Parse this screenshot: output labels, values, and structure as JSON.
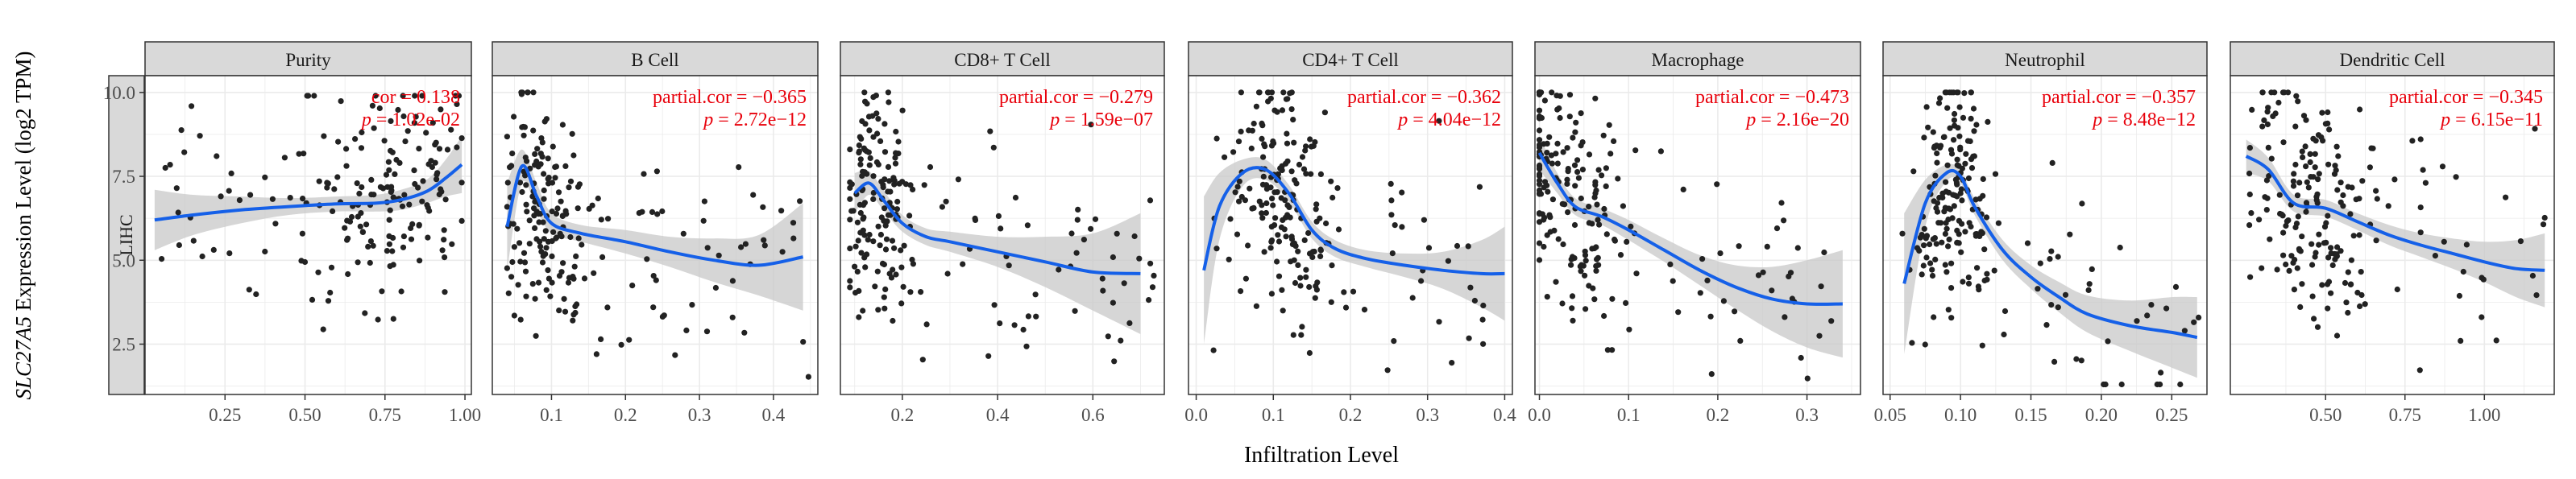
{
  "figure": {
    "ylabel_gene": "SLC27A5",
    "ylabel_rest": " Expression Level (log2 TPM)",
    "xlabel": "Infiltration Level",
    "row_label": "LIHC"
  },
  "colors": {
    "points": "#222222",
    "fit": "#1560e8",
    "band": "#c8c8c8",
    "strip": "#d9d9d9",
    "grid": "#ebebeb",
    "stats": "#e8000b"
  },
  "chart_data": [
    {
      "type": "scatter",
      "title": "Purity",
      "stat_label": "cor",
      "stat_value": "0.138",
      "p_label": "p",
      "p_value": "1.02e-02",
      "xlim": [
        0,
        1.02
      ],
      "ylim": [
        1.0,
        10.5
      ],
      "xticks": [
        0.25,
        0.5,
        0.75,
        1.0
      ],
      "xtick_labels": [
        "0.25",
        "0.50",
        "0.75",
        "1.00"
      ],
      "yticks": [
        2.5,
        5.0,
        7.5,
        10.0
      ],
      "ytick_labels": [
        "2.5",
        "5.0",
        "7.5",
        "10.0"
      ],
      "grid": true,
      "fit": {
        "x": [
          0.03,
          0.15,
          0.3,
          0.45,
          0.6,
          0.72,
          0.8,
          0.88,
          0.94,
          0.99
        ],
        "y": [
          6.2,
          6.35,
          6.5,
          6.6,
          6.68,
          6.7,
          6.8,
          7.05,
          7.45,
          7.85
        ],
        "lo": [
          5.3,
          5.75,
          6.1,
          6.35,
          6.45,
          6.45,
          6.5,
          6.7,
          6.9,
          7.0
        ],
        "hi": [
          7.1,
          6.95,
          6.9,
          6.85,
          6.9,
          6.95,
          7.1,
          7.4,
          8.0,
          8.7
        ]
      },
      "cloud": {
        "n": 190,
        "x_center": 0.76,
        "x_spread": 0.15,
        "x_min": 0.05,
        "x_max": 0.99,
        "y_min": 1.3,
        "y_max": 9.9,
        "seed": 11
      }
    },
    {
      "type": "scatter",
      "title": "B Cell",
      "stat_label": "partial.cor",
      "stat_value": "−0.365",
      "p_label": "p",
      "p_value": "2.72e−12",
      "xlim": [
        0.02,
        0.46
      ],
      "ylim": [
        1.0,
        10.5
      ],
      "xticks": [
        0.1,
        0.2,
        0.3,
        0.4
      ],
      "xtick_labels": [
        "0.1",
        "0.2",
        "0.3",
        "0.4"
      ],
      "yticks": [
        2.5,
        5.0,
        7.5,
        10.0
      ],
      "grid": true,
      "fit": {
        "x": [
          0.04,
          0.06,
          0.08,
          0.1,
          0.14,
          0.2,
          0.26,
          0.32,
          0.38,
          0.44
        ],
        "y": [
          6.0,
          7.8,
          6.9,
          6.1,
          5.8,
          5.55,
          5.25,
          5.0,
          4.85,
          5.1
        ],
        "lo": [
          4.7,
          7.3,
          6.5,
          5.8,
          5.55,
          5.2,
          4.8,
          4.35,
          3.95,
          3.5
        ],
        "hi": [
          7.3,
          8.3,
          7.3,
          6.4,
          6.05,
          5.9,
          5.7,
          5.65,
          5.75,
          6.7
        ]
      },
      "cloud": {
        "n": 210,
        "x_center": 0.085,
        "x_spread": 0.035,
        "x_min": 0.04,
        "x_max": 0.45,
        "y_min": 1.3,
        "y_max": 10.0,
        "seed": 23
      }
    },
    {
      "type": "scatter",
      "title": "CD8+ T Cell",
      "stat_label": "partial.cor",
      "stat_value": "−0.279",
      "p_label": "p",
      "p_value": "1.59e−07",
      "xlim": [
        0.07,
        0.75
      ],
      "ylim": [
        1.0,
        10.5
      ],
      "xticks": [
        0.2,
        0.4,
        0.6
      ],
      "xtick_labels": [
        "0.2",
        "0.4",
        "0.6"
      ],
      "yticks": [
        2.5,
        5.0,
        7.5,
        10.0
      ],
      "grid": true,
      "fit": {
        "x": [
          0.1,
          0.13,
          0.16,
          0.2,
          0.25,
          0.3,
          0.4,
          0.5,
          0.6,
          0.7
        ],
        "y": [
          7.0,
          7.3,
          6.8,
          6.1,
          5.7,
          5.55,
          5.25,
          4.95,
          4.65,
          4.6
        ],
        "lo": [
          6.4,
          6.95,
          6.5,
          5.85,
          5.45,
          5.25,
          4.8,
          4.2,
          3.5,
          2.8
        ],
        "hi": [
          7.6,
          7.65,
          7.1,
          6.35,
          5.95,
          5.85,
          5.7,
          5.7,
          5.8,
          6.4
        ]
      },
      "cloud": {
        "n": 210,
        "x_center": 0.15,
        "x_spread": 0.045,
        "x_min": 0.09,
        "x_max": 0.73,
        "y_min": 1.3,
        "y_max": 10.0,
        "seed": 37
      }
    },
    {
      "type": "scatter",
      "title": "CD4+ T Cell",
      "stat_label": "partial.cor",
      "stat_value": "−0.362",
      "p_label": "p",
      "p_value": "4.04e−12",
      "xlim": [
        -0.01,
        0.41
      ],
      "ylim": [
        1.0,
        10.5
      ],
      "xticks": [
        0.0,
        0.1,
        0.2,
        0.3,
        0.4
      ],
      "xtick_labels": [
        "0.0",
        "0.1",
        "0.2",
        "0.3",
        "0.4"
      ],
      "yticks": [
        2.5,
        5.0,
        7.5,
        10.0
      ],
      "grid": true,
      "fit": {
        "x": [
          0.01,
          0.03,
          0.06,
          0.09,
          0.12,
          0.15,
          0.18,
          0.22,
          0.27,
          0.32,
          0.37,
          0.4
        ],
        "y": [
          4.7,
          6.6,
          7.6,
          7.7,
          7.0,
          5.9,
          5.35,
          5.05,
          4.85,
          4.7,
          4.6,
          4.6
        ],
        "lo": [
          2.5,
          5.6,
          7.2,
          7.4,
          6.75,
          5.65,
          5.1,
          4.8,
          4.5,
          4.15,
          3.6,
          3.2
        ],
        "hi": [
          6.9,
          7.6,
          8.0,
          8.0,
          7.25,
          6.15,
          5.6,
          5.3,
          5.2,
          5.25,
          5.6,
          6.0
        ]
      },
      "cloud": {
        "n": 210,
        "x_center": 0.11,
        "x_spread": 0.035,
        "x_min": 0.02,
        "x_max": 0.39,
        "y_min": 1.3,
        "y_max": 10.0,
        "seed": 41
      }
    },
    {
      "type": "scatter",
      "title": "Macrophage",
      "stat_label": "partial.cor",
      "stat_value": "−0.473",
      "p_label": "p",
      "p_value": "2.16e−20",
      "xlim": [
        -0.005,
        0.36
      ],
      "ylim": [
        1.0,
        10.5
      ],
      "xticks": [
        0.0,
        0.1,
        0.2,
        0.3
      ],
      "xtick_labels": [
        "0.0",
        "0.1",
        "0.2",
        "0.3"
      ],
      "yticks": [
        2.5,
        5.0,
        7.5,
        10.0
      ],
      "grid": true,
      "fit": {
        "x": [
          0.0,
          0.02,
          0.04,
          0.07,
          0.1,
          0.14,
          0.18,
          0.22,
          0.26,
          0.3,
          0.34
        ],
        "y": [
          8.2,
          7.3,
          6.6,
          6.3,
          5.9,
          5.3,
          4.7,
          4.2,
          3.85,
          3.7,
          3.7
        ],
        "lo": [
          7.7,
          7.0,
          6.35,
          6.05,
          5.6,
          4.95,
          4.25,
          3.55,
          2.9,
          2.4,
          2.1
        ],
        "hi": [
          8.7,
          7.6,
          6.85,
          6.55,
          6.2,
          5.65,
          5.15,
          4.85,
          4.8,
          5.0,
          5.3
        ]
      },
      "cloud": {
        "n": 210,
        "x_center": 0.03,
        "x_spread": 0.045,
        "x_min": 0.0,
        "x_max": 0.35,
        "y_min": 1.3,
        "y_max": 10.0,
        "seed": 53
      }
    },
    {
      "type": "scatter",
      "title": "Neutrophil",
      "stat_label": "partial.cor",
      "stat_value": "−0.357",
      "p_label": "p",
      "p_value": "8.48e−12",
      "xlim": [
        0.045,
        0.275
      ],
      "ylim": [
        1.0,
        10.5
      ],
      "xticks": [
        0.05,
        0.1,
        0.15,
        0.2,
        0.25
      ],
      "xtick_labels": [
        "0.05",
        "0.10",
        "0.15",
        "0.20",
        "0.25"
      ],
      "yticks": [
        2.5,
        5.0,
        7.5,
        10.0
      ],
      "grid": true,
      "fit": {
        "x": [
          0.06,
          0.075,
          0.09,
          0.1,
          0.11,
          0.13,
          0.15,
          0.17,
          0.19,
          0.22,
          0.25,
          0.268
        ],
        "y": [
          4.3,
          6.7,
          7.6,
          7.5,
          6.6,
          5.3,
          4.5,
          3.9,
          3.4,
          3.05,
          2.85,
          2.7
        ],
        "lo": [
          2.2,
          6.0,
          7.35,
          7.3,
          6.35,
          5.0,
          4.15,
          3.45,
          2.85,
          2.3,
          1.8,
          1.5
        ],
        "hi": [
          6.4,
          7.4,
          7.85,
          7.7,
          6.85,
          5.6,
          4.85,
          4.35,
          3.95,
          3.8,
          3.9,
          3.9
        ]
      },
      "cloud": {
        "n": 210,
        "x_center": 0.097,
        "x_spread": 0.016,
        "x_min": 0.055,
        "x_max": 0.27,
        "y_min": 1.3,
        "y_max": 10.0,
        "seed": 67
      }
    },
    {
      "type": "scatter",
      "title": "Dendritic Cell",
      "stat_label": "partial.cor",
      "stat_value": "−0.345",
      "p_label": "p",
      "p_value": "6.15e−11",
      "xlim": [
        0.2,
        1.22
      ],
      "ylim": [
        1.0,
        10.5
      ],
      "xticks": [
        0.5,
        0.75,
        1.0
      ],
      "xtick_labels": [
        "0.50",
        "0.75",
        "1.00"
      ],
      "yticks": [
        2.5,
        5.0,
        7.5,
        10.0
      ],
      "grid": true,
      "fit": {
        "x": [
          0.25,
          0.32,
          0.4,
          0.5,
          0.6,
          0.7,
          0.8,
          0.9,
          1.0,
          1.1,
          1.19
        ],
        "y": [
          8.1,
          7.7,
          6.7,
          6.55,
          6.15,
          5.75,
          5.45,
          5.2,
          4.95,
          4.75,
          4.7
        ],
        "lo": [
          7.6,
          7.35,
          6.45,
          6.3,
          5.9,
          5.45,
          5.1,
          4.75,
          4.35,
          3.9,
          3.6
        ],
        "hi": [
          8.6,
          8.05,
          6.95,
          6.8,
          6.4,
          6.05,
          5.8,
          5.65,
          5.55,
          5.6,
          5.8
        ]
      },
      "cloud": {
        "n": 200,
        "x_center": 0.45,
        "x_spread": 0.12,
        "x_min": 0.26,
        "x_max": 1.2,
        "y_min": 1.3,
        "y_max": 10.0,
        "seed": 79
      }
    }
  ]
}
